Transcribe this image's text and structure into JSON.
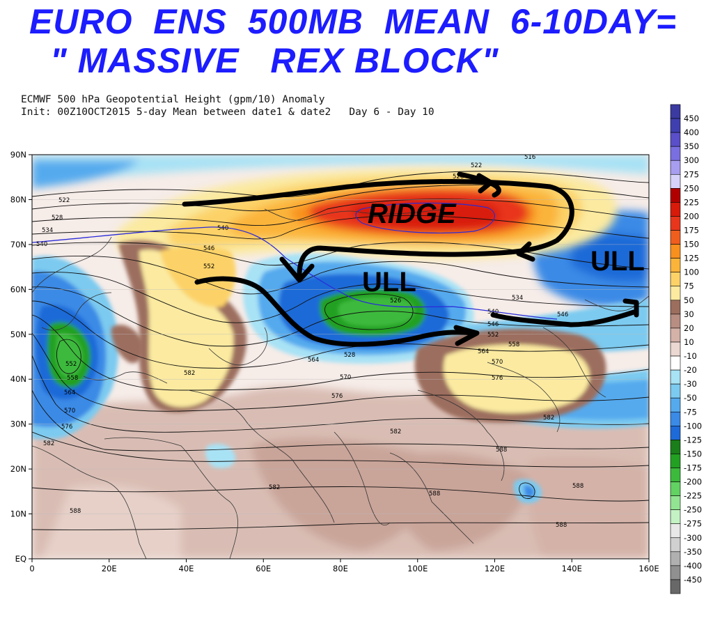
{
  "headline": {
    "line1": "EURO  ENS  500MB  MEAN  6-10DAY=",
    "line2": "\" MASSIVE   REX BLOCK\""
  },
  "subtitle": {
    "line1": "ECMWF 500 hPa Geopotential Height (gpm/10) Anomaly",
    "line2": "Init: 00Z10OCT2015 5-day Mean between date1 & date2   Day 6 - Day 10"
  },
  "map": {
    "lat_labels": [
      "90N",
      "80N",
      "70N",
      "60N",
      "50N",
      "40N",
      "30N",
      "20N",
      "10N",
      "EQ"
    ],
    "lon_labels": [
      "0",
      "20E",
      "40E",
      "60E",
      "80E",
      "100E",
      "120E",
      "140E",
      "160E"
    ],
    "annotations": {
      "ridge": "RIDGE",
      "ull_center": "ULL",
      "ull_east": "ULL"
    },
    "contour_labels": {
      "c522a": "522",
      "c522b": "522",
      "c516": "516",
      "c528a": "528",
      "c528b": "528",
      "c534a": "534",
      "c534b": "534",
      "c540a": "540",
      "c540b": "540",
      "c540c": "540",
      "c546a": "546",
      "c546b": "546",
      "c552a": "552",
      "c552b": "552",
      "c558a": "558",
      "c558b": "558",
      "c564a": "564",
      "c564b": "564",
      "c564c": "564",
      "c570a": "570",
      "c570b": "570",
      "c570c": "570",
      "c576a": "576",
      "c576b": "576",
      "c576c": "576",
      "c582a": "582",
      "c582b": "582",
      "c582c": "582",
      "c582d": "582",
      "c582e": "582",
      "c588a": "588",
      "c588b": "588",
      "c588c": "588",
      "c588d": "588",
      "c588e": "588",
      "c526": "526",
      "c552c": "552",
      "c546c": "546",
      "c528c": "528"
    }
  },
  "colorbar": {
    "labels": [
      "450",
      "400",
      "350",
      "300",
      "275",
      "250",
      "225",
      "200",
      "175",
      "150",
      "125",
      "100",
      "75",
      "50",
      "30",
      "20",
      "10",
      "-10",
      "-20",
      "-30",
      "-50",
      "-75",
      "-100",
      "-125",
      "-150",
      "-175",
      "-200",
      "-225",
      "-250",
      "-275",
      "-300",
      "-350",
      "-400",
      "-450"
    ],
    "colors": [
      "#3f3fb0",
      "#5a4fc8",
      "#7a6fe0",
      "#a89ef0",
      "#d6d2fa",
      "#b00000",
      "#d81a0a",
      "#e8361c",
      "#f05e1e",
      "#f8901e",
      "#fbb43a",
      "#fcd268",
      "#fbeaa0",
      "#9c6e5e",
      "#b88e82",
      "#d4b2a8",
      "#ecd8d2",
      "#ffffff",
      "#a8e2f5",
      "#7ccaf0",
      "#55aaee",
      "#3a8ae6",
      "#1e6ad8",
      "#1a7e1a",
      "#22a022",
      "#3cba3c",
      "#62d262",
      "#92e492",
      "#c4f2c4",
      "#e8e8e8",
      "#d0d0d0",
      "#b0b0b0",
      "#909090",
      "#686868"
    ]
  }
}
